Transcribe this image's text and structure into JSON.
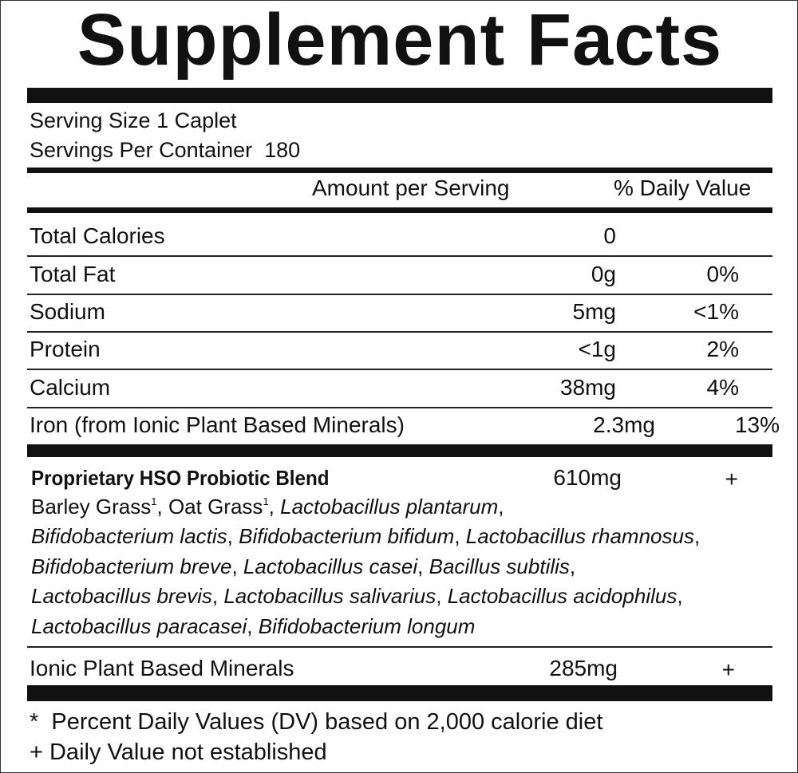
{
  "title": "Supplement Facts",
  "serving_size": "Serving Size 1 Caplet",
  "servings_per_container": "Servings Per Container  180",
  "columns": {
    "amount": "Amount per Serving",
    "daily_value": "% Daily Value"
  },
  "nutrients": [
    {
      "name": "Total Calories",
      "amount": "0"
    },
    {
      "name": "Total Fat",
      "amount": "0g",
      "daily_value": "0%"
    },
    {
      "name": "Sodium",
      "amount": "5mg",
      "daily_value": "<1%"
    },
    {
      "name": "Protein",
      "amount": "<1g",
      "daily_value": "2%"
    },
    {
      "name": "Calcium",
      "amount": "38mg",
      "daily_value": "4%"
    },
    {
      "name": "Iron (from Ionic Plant Based Minerals)",
      "amount": "2.3mg",
      "daily_value": "13%"
    }
  ],
  "blend": {
    "name": "Proprietary HSO Probiotic Blend",
    "amount": "610mg",
    "daily_value": "+",
    "ingredient_lines": [
      [
        {
          "name": "Barley Grass",
          "footnote": "1"
        },
        {
          "name": "Oat Grass",
          "footnote": "1"
        },
        {
          "name": "Lactobacillus plantarum",
          "italic": true
        }
      ],
      [
        {
          "name": "Bifidobacterium lactis",
          "italic": true
        },
        {
          "name": "Bifidobacterium bifidum",
          "italic": true
        },
        {
          "name": "Lactobacillus rhamnosus",
          "italic": true
        }
      ],
      [
        {
          "name": "Bifidobacterium breve",
          "italic": true
        },
        {
          "name": "Lactobacillus casei",
          "italic": true
        },
        {
          "name": "Bacillus subtilis",
          "italic": true
        }
      ],
      [
        {
          "name": "Lactobacillus brevis",
          "italic": true
        },
        {
          "name": "Lactobacillus salivarius",
          "italic": true
        },
        {
          "name": "Lactobacillus acidophilus",
          "italic": true
        }
      ],
      [
        {
          "name": "Lactobacillus paracasei",
          "italic": true
        },
        {
          "name": "Bifidobacterium longum",
          "italic": true
        }
      ]
    ]
  },
  "other": [
    {
      "name": "Ionic Plant Based Minerals",
      "amount": "285mg",
      "daily_value": "+"
    }
  ],
  "footnotes": [
    "*  Percent Daily Values (DV) based on 2,000 calorie diet",
    "+ Daily Value not established"
  ]
}
